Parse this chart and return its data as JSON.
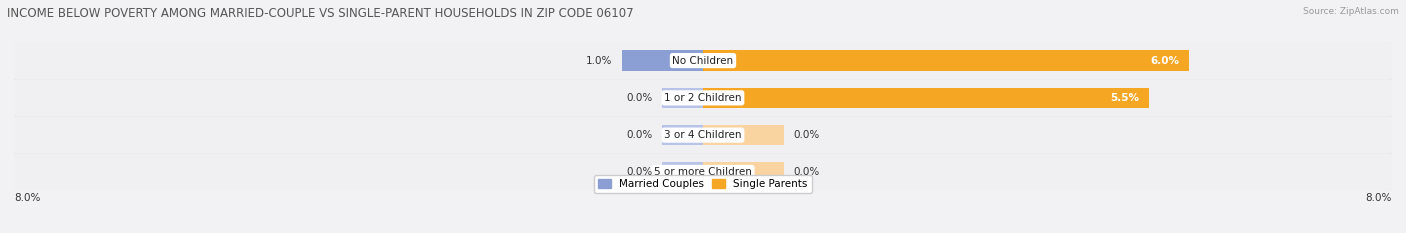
{
  "title": "INCOME BELOW POVERTY AMONG MARRIED-COUPLE VS SINGLE-PARENT HOUSEHOLDS IN ZIP CODE 06107",
  "source": "Source: ZipAtlas.com",
  "categories": [
    "No Children",
    "1 or 2 Children",
    "3 or 4 Children",
    "5 or more Children"
  ],
  "married_values": [
    1.0,
    0.0,
    0.0,
    0.0
  ],
  "single_values": [
    6.0,
    5.5,
    0.0,
    0.0
  ],
  "married_bar_values": [
    1.0,
    0.5,
    0.5,
    0.5
  ],
  "single_bar_values": [
    6.0,
    5.5,
    1.0,
    1.0
  ],
  "xlim_left": -8.5,
  "xlim_right": 8.5,
  "x_left_label": "8.0%",
  "x_right_label": "8.0%",
  "married_color": "#8b9fd4",
  "married_color_light": "#b8c3e8",
  "single_color": "#f5a623",
  "single_color_light": "#f9d4a0",
  "bar_height": 0.55,
  "row_bg_color": "#e8e8eb",
  "row_pill_color": "#f5f5f7",
  "title_fontsize": 8.5,
  "label_fontsize": 7.5,
  "value_fontsize": 7.5,
  "tick_fontsize": 7.5,
  "legend_fontsize": 7.5
}
